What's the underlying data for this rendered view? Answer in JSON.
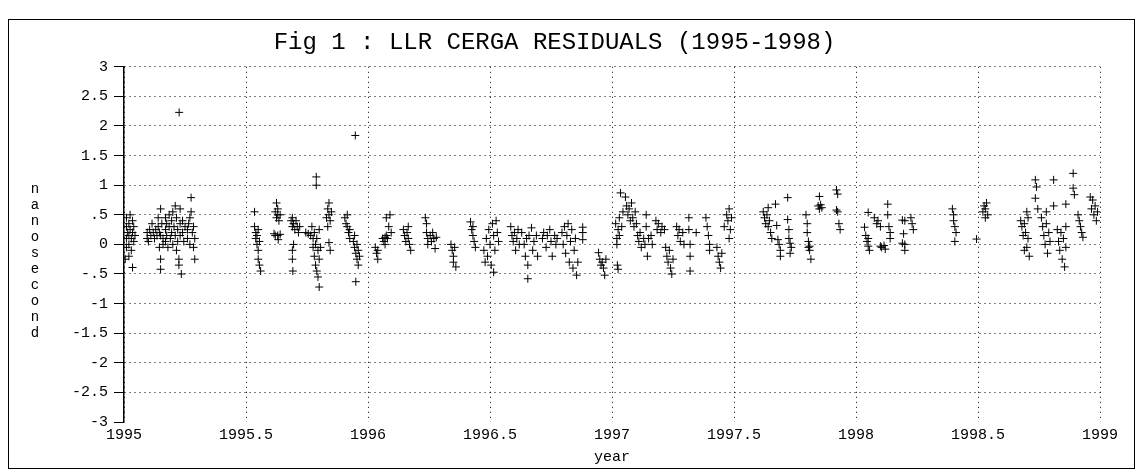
{
  "chart_data": {
    "type": "scatter",
    "title": "Fig 1 : LLR CERGA RESIDUALS (1995-1998)",
    "xlabel": "year",
    "ylabel": "nanosecond",
    "color": "#000000",
    "marker": "cross",
    "grid": true,
    "xlim": [
      1995,
      1999
    ],
    "xticks": [
      1995,
      1995.5,
      1996,
      1996.5,
      1997,
      1997.5,
      1998,
      1998.5,
      1999
    ],
    "ylim": [
      -3,
      3
    ],
    "yticks": [
      -3,
      -2.5,
      -2,
      -1.5,
      -1,
      {
        "value": -0.5,
        "label": "-.5"
      },
      0,
      {
        "value": 0.5,
        "label": ".5"
      },
      1,
      1.5,
      2,
      2.5,
      3
    ],
    "x": [
      1995.01,
      1995.01,
      1995.01,
      1995.01,
      1995.015,
      1995.02,
      1995.02,
      1995.02,
      1995.02,
      1995.025,
      1995.025,
      1995.03,
      1995.03,
      1995.035,
      1995.035,
      1995.04,
      1995.04,
      1995.045,
      1995.035,
      1995.005,
      1995.095,
      1995.095,
      1995.1,
      1995.105,
      1995.11,
      1995.115,
      1995.12,
      1995.125,
      1995.13,
      1995.135,
      1995.14,
      1995.14,
      1995.145,
      1995.145,
      1995.15,
      1995.15,
      1995.15,
      1995.15,
      1995.155,
      1995.16,
      1995.16,
      1995.17,
      1995.17,
      1995.17,
      1995.175,
      1995.175,
      1995.18,
      1995.185,
      1995.185,
      1995.19,
      1995.195,
      1995.195,
      1995.2,
      1995.2,
      1995.205,
      1995.21,
      1995.21,
      1995.215,
      1995.215,
      1995.22,
      1995.22,
      1995.225,
      1995.225,
      1995.226,
      1995.23,
      1995.23,
      1995.23,
      1995.235,
      1995.24,
      1995.24,
      1995.245,
      1995.25,
      1995.26,
      1995.26,
      1995.265,
      1995.27,
      1995.27,
      1995.275,
      1995.275,
      1995.28,
      1995.285,
      1995.285,
      1995.29,
      1995.29,
      1995.535,
      1995.535,
      1995.54,
      1995.54,
      1995.545,
      1995.545,
      1995.55,
      1995.55,
      1995.55,
      1995.555,
      1995.555,
      1995.56,
      1995.62,
      1995.625,
      1995.625,
      1995.63,
      1995.63,
      1995.635,
      1995.64,
      1995.62,
      1995.63,
      1995.64,
      1995.615,
      1995.632,
      1995.685,
      1995.69,
      1995.69,
      1995.695,
      1995.7,
      1995.705,
      1995.71,
      1995.715,
      1995.72,
      1995.69,
      1995.69,
      1995.692,
      1995.695,
      1995.745,
      1995.755,
      1995.765,
      1995.77,
      1995.775,
      1995.775,
      1995.78,
      1995.78,
      1995.785,
      1995.785,
      1995.79,
      1995.79,
      1995.795,
      1995.795,
      1995.8,
      1995.8,
      1995.8,
      1995.805,
      1995.788,
      1995.788,
      1995.83,
      1995.835,
      1995.835,
      1995.84,
      1995.84,
      1995.845,
      1995.85,
      1995.84,
      1995.845,
      1995.905,
      1995.91,
      1995.915,
      1995.915,
      1995.92,
      1995.925,
      1995.925,
      1995.948,
      1995.94,
      1995.945,
      1995.95,
      1995.955,
      1995.955,
      1995.96,
      1995.96,
      1995.965,
      1995.95,
      1995.945,
      1996.03,
      1996.035,
      1996.04,
      1996.04,
      1996.06,
      1996.065,
      1996.07,
      1996.075,
      1996.08,
      1996.07,
      1996.075,
      1996.085,
      1996.09,
      1996.095,
      1996.145,
      1996.15,
      1996.155,
      1996.16,
      1996.165,
      1996.17,
      1996.175,
      1996.165,
      1996.235,
      1996.24,
      1996.24,
      1996.245,
      1996.245,
      1996.255,
      1996.26,
      1996.265,
      1996.27,
      1996.275,
      1996.28,
      1996.34,
      1996.345,
      1996.35,
      1996.35,
      1996.355,
      1996.36,
      1996.42,
      1996.425,
      1996.43,
      1996.435,
      1996.44,
      1996.43,
      1996.475,
      1996.48,
      1996.485,
      1996.49,
      1996.495,
      1996.5,
      1996.505,
      1996.51,
      1996.515,
      1996.515,
      1996.52,
      1996.525,
      1996.53,
      1996.535,
      1996.585,
      1996.59,
      1996.595,
      1996.6,
      1996.605,
      1996.61,
      1996.615,
      1996.62,
      1996.63,
      1996.64,
      1996.645,
      1996.65,
      1996.655,
      1996.655,
      1996.66,
      1996.67,
      1996.675,
      1996.68,
      1996.69,
      1996.695,
      1996.715,
      1996.72,
      1996.73,
      1996.735,
      1996.745,
      1996.75,
      1996.755,
      1996.765,
      1996.77,
      1996.775,
      1996.795,
      1996.8,
      1996.805,
      1996.81,
      1996.815,
      1996.82,
      1996.825,
      1996.83,
      1996.835,
      1996.84,
      1996.845,
      1996.85,
      1996.855,
      1996.86,
      1996.88,
      1996.88,
      1996.88,
      1996.945,
      1996.95,
      1996.955,
      1996.96,
      1996.965,
      1996.97,
      1996.975,
      1997.015,
      1997.02,
      1997.02,
      1997.025,
      1997.03,
      1997.03,
      1997.035,
      1997.04,
      1997.045,
      1997.022,
      1997.025,
      1997.055,
      1997.06,
      1997.065,
      1997.07,
      1997.075,
      1997.08,
      1997.085,
      1997.09,
      1997.095,
      1997.1,
      1997.105,
      1997.11,
      1997.115,
      1997.12,
      1997.13,
      1997.135,
      1997.14,
      1997.14,
      1997.145,
      1997.15,
      1997.16,
      1997.165,
      1997.18,
      1997.185,
      1997.19,
      1997.2,
      1997.205,
      1997.215,
      1997.22,
      1997.225,
      1997.23,
      1997.235,
      1997.24,
      1997.245,
      1997.25,
      1997.265,
      1997.27,
      1997.275,
      1997.28,
      1997.29,
      1997.295,
      1997.315,
      1997.315,
      1997.32,
      1997.32,
      1997.32,
      1997.345,
      1997.385,
      1997.39,
      1997.395,
      1997.4,
      1997.4,
      1997.43,
      1997.435,
      1997.44,
      1997.445,
      1997.45,
      1997.46,
      1997.47,
      1997.475,
      1997.48,
      1997.485,
      1997.49,
      1997.48,
      1997.62,
      1997.625,
      1997.63,
      1997.635,
      1997.64,
      1997.645,
      1997.65,
      1997.655,
      1997.64,
      1997.67,
      1997.675,
      1997.68,
      1997.685,
      1997.69,
      1997.69,
      1997.72,
      1997.72,
      1997.725,
      1997.725,
      1997.73,
      1997.735,
      1997.73,
      1997.795,
      1997.8,
      1997.8,
      1997.805,
      1997.81,
      1997.81,
      1997.815,
      1997.805,
      1997.85,
      1997.845,
      1997.85,
      1997.855,
      1997.86,
      1997.92,
      1997.925,
      1997.92,
      1997.925,
      1997.93,
      1997.935,
      1998.035,
      1998.04,
      1998.045,
      1998.05,
      1998.05,
      1998.055,
      1998.05,
      1998.075,
      1998.085,
      1998.09,
      1998.1,
      1998.1,
      1998.105,
      1998.115,
      1998.12,
      1998.13,
      1998.13,
      1998.135,
      1998.14,
      1998.14,
      1998.19,
      1998.2,
      1998.195,
      1998.19,
      1998.2,
      1998.2,
      1998.225,
      1998.23,
      1998.235,
      1998.395,
      1998.4,
      1998.4,
      1998.405,
      1998.41,
      1998.405,
      1998.494,
      1998.52,
      1998.525,
      1998.53,
      1998.535,
      1998.54,
      1998.53,
      1998.675,
      1998.68,
      1998.685,
      1998.69,
      1998.695,
      1998.7,
      1998.705,
      1998.7,
      1998.71,
      1998.69,
      1998.705,
      1998.735,
      1998.74,
      1998.735,
      1998.745,
      1998.76,
      1998.765,
      1998.77,
      1998.775,
      1998.78,
      1998.785,
      1998.79,
      1998.795,
      1998.78,
      1998.81,
      1998.81,
      1998.825,
      1998.83,
      1998.835,
      1998.84,
      1998.845,
      1998.85,
      1998.855,
      1998.86,
      1998.86,
      1998.86,
      1998.89,
      1998.89,
      1998.895,
      1998.91,
      1998.915,
      1998.92,
      1998.925,
      1998.93,
      1998.96,
      1998.965,
      1998.97,
      1998.975,
      1998.98,
      1998.985,
      1998.99
    ],
    "values": [
      0.45,
      0.3,
      0.1,
      -0.05,
      0.2,
      0.35,
      0.15,
      0,
      -0.2,
      0.5,
      0.25,
      0.1,
      -0.1,
      0.4,
      0.2,
      0.3,
      0.05,
      0.15,
      -0.39,
      -0.25,
      0.2,
      0.1,
      0.05,
      0.25,
      0.15,
      0.35,
      0.2,
      0.1,
      0.25,
      0.15,
      0.45,
      0.3,
      0.2,
      -0.05,
      0.6,
      0.15,
      -0.25,
      -0.42,
      0.35,
      0.1,
      0,
      0.45,
      0.25,
      0.05,
      0.35,
      0.15,
      -0.05,
      0.3,
      0.5,
      0.1,
      0.4,
      0.2,
      0,
      0.55,
      0.3,
      0.15,
      0.65,
      0.45,
      -0.1,
      0.25,
      0.05,
      -0.25,
      -0.35,
      2.23,
      0.6,
      0.35,
      0.15,
      -0.5,
      0.4,
      0.2,
      0.05,
      0.3,
      0.25,
      0.1,
      0.35,
      0.45,
      0,
      0.79,
      0.55,
      0.2,
      0.3,
      -0.05,
      0.1,
      -0.25,
      0.55,
      0.3,
      0.2,
      0.1,
      0,
      0.15,
      0.25,
      -0.1,
      -0.25,
      -0.35,
      0.05,
      -0.45,
      0.55,
      0.45,
      0.7,
      0.5,
      0.6,
      0.4,
      0.5,
      0.15,
      0.15,
      0.17,
      0.18,
      0.08,
      0.4,
      0.45,
      0.3,
      0.35,
      0.25,
      0.4,
      0.3,
      0.2,
      0.3,
      -0.1,
      -0.25,
      -0.45,
      0,
      0.2,
      0.18,
      0.15,
      0.3,
      0.1,
      -0.05,
      0.2,
      -0.2,
      0,
      -0.35,
      0.1,
      -0.45,
      -0.1,
      -0.55,
      0.25,
      -0.25,
      -0.72,
      -0.05,
      1.14,
      1,
      0.45,
      0.6,
      0.3,
      0.7,
      0.5,
      0.4,
      0.55,
      0.03,
      -0.1,
      0.45,
      0.35,
      0.5,
      0.3,
      0.2,
      0.1,
      0.25,
      1.84,
      0.05,
      -0.05,
      -0.15,
      0,
      -0.25,
      -0.35,
      -0.1,
      -0.2,
      -0.63,
      0.15,
      -0.05,
      -0.15,
      -0.25,
      -0.1,
      0.1,
      0.05,
      0.12,
      0.15,
      0.1,
      0,
      0.45,
      0.3,
      0.5,
      0.2,
      0.25,
      0.15,
      0.05,
      0.2,
      0.1,
      0,
      -0.1,
      0.3,
      0.45,
      0.35,
      0.2,
      0.1,
      0,
      0.15,
      0.05,
      0.2,
      0.1,
      -0.07,
      0.12,
      0,
      -0.1,
      -0.2,
      -0.3,
      -0.05,
      -0.38,
      0.38,
      0.25,
      0.15,
      0.05,
      -0.05,
      0.3,
      -0.1,
      -0.3,
      0.1,
      -0.2,
      0.25,
      0,
      -0.35,
      0.35,
      -0.47,
      0.15,
      -0.1,
      0.4,
      0.2,
      0.05,
      0.3,
      0.15,
      0.05,
      0.2,
      -0.1,
      0.1,
      0.25,
      0,
      0.2,
      0,
      -0.2,
      0.1,
      -0.35,
      -0.58,
      0.15,
      0.28,
      -0.1,
      0.05,
      0.15,
      -0.2,
      0.1,
      0.2,
      -0.05,
      0.15,
      0.25,
      0.05,
      -0.2,
      0.15,
      0,
      0.1,
      0.2,
      0,
      0.3,
      -0.15,
      0.15,
      0.35,
      -0.3,
      0.05,
      0.25,
      -0.4,
      -0.1,
      0.1,
      -0.52,
      -0.3,
      0.29,
      0.2,
      0.08,
      -0.14,
      -0.25,
      -0.35,
      -0.3,
      -0.4,
      -0.52,
      -0.25,
      0.35,
      0.1,
      0,
      0.25,
      0.45,
      0.15,
      0.87,
      0.3,
      0.55,
      -0.35,
      -0.42,
      0.8,
      0.65,
      0.5,
      0.6,
      0.4,
      0.7,
      0.45,
      0.3,
      0.55,
      0.35,
      0.15,
      0.05,
      0.2,
      -0.05,
      0.1,
      0,
      0.5,
      0.3,
      -0.2,
      0.1,
      0.15,
      0,
      0.4,
      0.25,
      0.35,
      0.2,
      0.3,
      0.25,
      -0.05,
      -0.2,
      -0.3,
      -0.1,
      -0.4,
      -0.5,
      -0.25,
      0.3,
      0.15,
      0.25,
      0.05,
      0.2,
      0,
      0.45,
      0.25,
      0,
      -0.2,
      -0.45,
      0.2,
      0.45,
      0.3,
      0.15,
      0,
      -0.1,
      -0.05,
      -0.2,
      -0.3,
      -0.4,
      -0.15,
      0.3,
      0.5,
      0.4,
      0.6,
      0.25,
      0.45,
      0.1,
      0.55,
      0.45,
      0.35,
      0.5,
      0.3,
      0.4,
      0.2,
      0.1,
      0.62,
      0.68,
      0.32,
      0.08,
      0,
      -0.1,
      -0.2,
      0.79,
      0.42,
      0.25,
      0.1,
      0.02,
      -0.05,
      -0.15,
      0.5,
      0.35,
      0.2,
      0.05,
      -0.03,
      -0.1,
      -0.25,
      -0.05,
      0.81,
      0.65,
      0.6,
      0.67,
      0.62,
      0.92,
      0.85,
      0.58,
      0.55,
      0.35,
      0.25,
      0.29,
      0.15,
      0.05,
      -0.03,
      0.1,
      -0.1,
      0.54,
      0.45,
      0.35,
      0.4,
      0.3,
      -0.03,
      -0.05,
      -0.02,
      -0.08,
      0.68,
      0.5,
      0.3,
      0.2,
      0.1,
      0.41,
      0.4,
      0.18,
      0.02,
      0,
      -0.1,
      0.45,
      0.35,
      0.25,
      0.6,
      0.5,
      0.4,
      0.3,
      0.2,
      0.05,
      0.09,
      0.55,
      0.65,
      0.6,
      0.7,
      0.5,
      0.45,
      0.4,
      0.3,
      0.15,
      0.35,
      0.2,
      0.55,
      0.1,
      -0.05,
      -0.2,
      -0.1,
      0.45,
      1.09,
      0.97,
      0.78,
      0.6,
      0.45,
      0.3,
      0.15,
      0,
      0.35,
      -0.15,
      0.2,
      0.05,
      0.55,
      1.09,
      0.65,
      0.25,
      0.05,
      -0.1,
      0.2,
      -0.25,
      0.1,
      -0.38,
      0.3,
      -0.05,
      0.68,
      1.2,
      0.95,
      0.84,
      0.5,
      0.4,
      0.3,
      0.2,
      0.12,
      0.8,
      0.6,
      0.75,
      0.5,
      0.65,
      0.4,
      0.55
    ]
  }
}
